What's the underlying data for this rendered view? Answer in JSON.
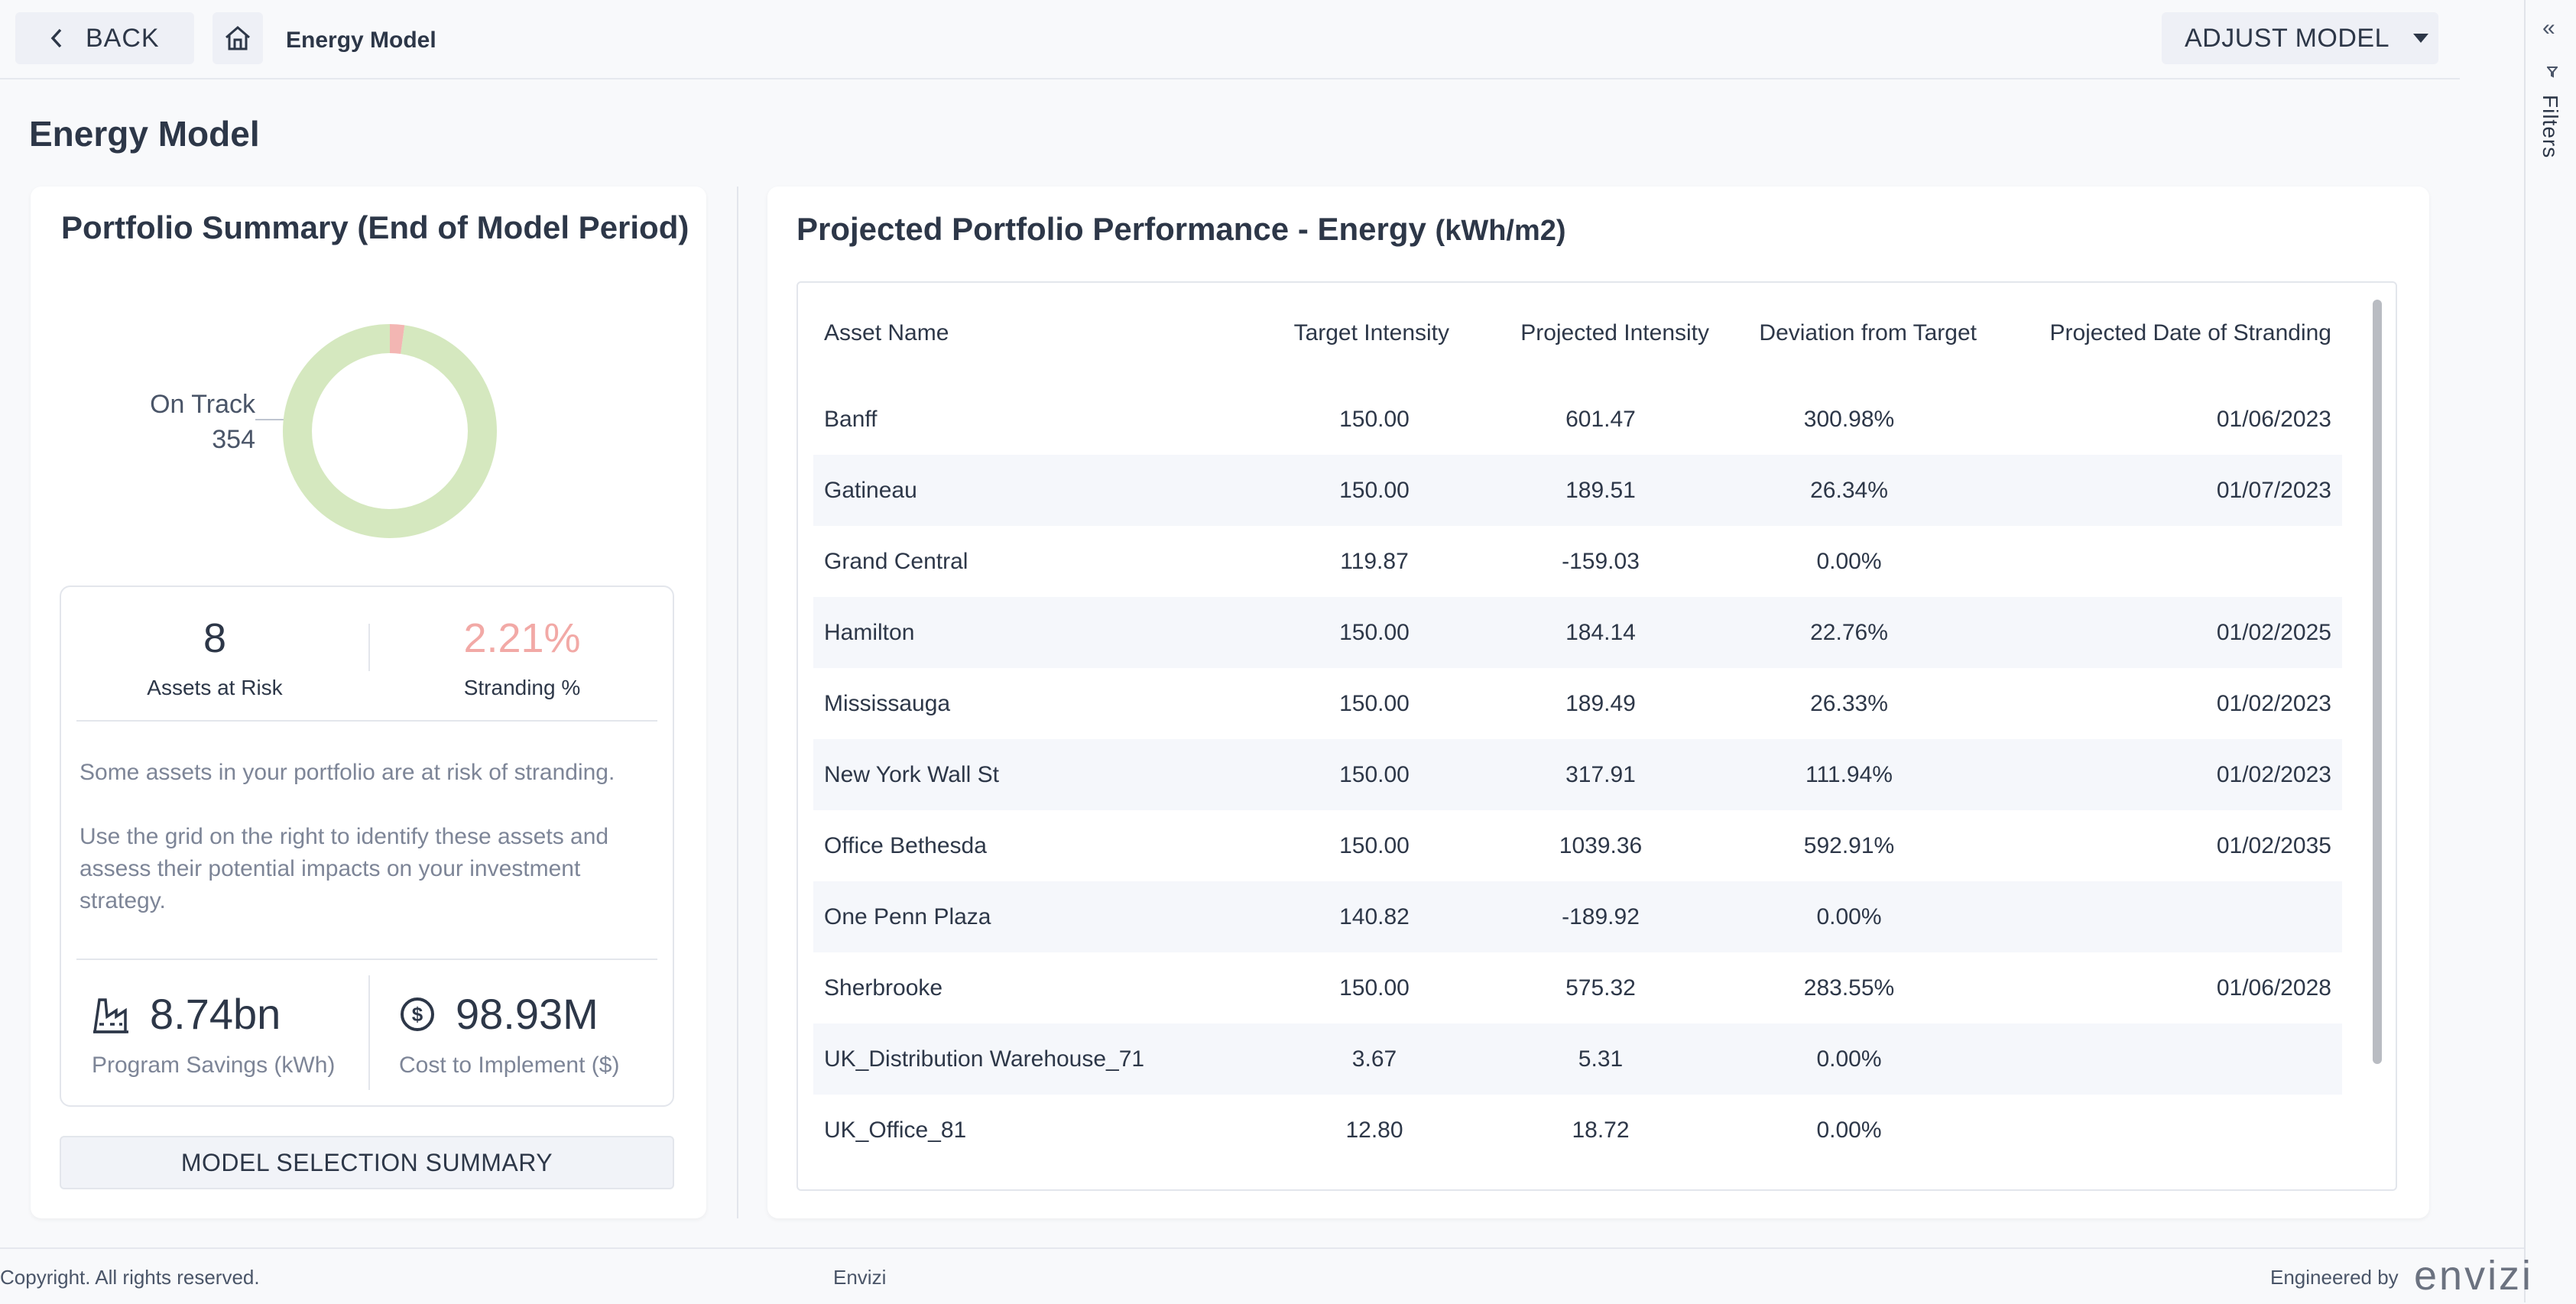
{
  "topbar": {
    "back_label": "BACK",
    "breadcrumb": "Energy Model",
    "adjust_label": "ADJUST MODEL"
  },
  "rail": {
    "filters_label": "Filters"
  },
  "page": {
    "title": "Energy Model"
  },
  "summary": {
    "title": "Portfolio Summary (End of Model Period)",
    "donut": {
      "label": "On Track",
      "count": "354",
      "on_track": 354,
      "at_risk": 8,
      "on_track_color": "#d5e8bf",
      "at_risk_color": "#f3b6b3"
    },
    "assets_at_risk": "8",
    "assets_at_risk_label": "Assets at Risk",
    "stranding_pct": "2.21%",
    "stranding_label": "Stranding %",
    "note_1": "Some assets in your portfolio are at risk of stranding.",
    "note_2": "Use the grid on the right to identify these assets and assess their potential impacts on your investment strategy.",
    "savings_value": "8.74bn",
    "savings_label": "Program Savings (kWh)",
    "cost_value": "98.93M",
    "cost_label": "Cost to Implement ($)",
    "model_button": "MODEL SELECTION SUMMARY"
  },
  "performance": {
    "title": "Projected Portfolio Performance - Energy",
    "unit": "(kWh/m2)",
    "columns": [
      "Asset Name",
      "Target Intensity",
      "Projected Intensity",
      "Deviation from Target",
      "Projected Date of Stranding"
    ],
    "rows": [
      {
        "name": "Banff",
        "target": "150.00",
        "projected": "601.47",
        "deviation": "300.98%",
        "date": "01/06/2023"
      },
      {
        "name": "Gatineau",
        "target": "150.00",
        "projected": "189.51",
        "deviation": "26.34%",
        "date": "01/07/2023"
      },
      {
        "name": "Grand Central",
        "target": "119.87",
        "projected": "-159.03",
        "deviation": "0.00%",
        "date": ""
      },
      {
        "name": "Hamilton",
        "target": "150.00",
        "projected": "184.14",
        "deviation": "22.76%",
        "date": "01/02/2025"
      },
      {
        "name": "Mississauga",
        "target": "150.00",
        "projected": "189.49",
        "deviation": "26.33%",
        "date": "01/02/2023"
      },
      {
        "name": "New York Wall St",
        "target": "150.00",
        "projected": "317.91",
        "deviation": "111.94%",
        "date": "01/02/2023"
      },
      {
        "name": "Office Bethesda",
        "target": "150.00",
        "projected": "1039.36",
        "deviation": "592.91%",
        "date": "01/02/2035"
      },
      {
        "name": "One Penn Plaza",
        "target": "140.82",
        "projected": "-189.92",
        "deviation": "0.00%",
        "date": ""
      },
      {
        "name": "Sherbrooke",
        "target": "150.00",
        "projected": "575.32",
        "deviation": "283.55%",
        "date": "01/06/2028"
      },
      {
        "name": "UK_Distribution Warehouse_71",
        "target": "3.67",
        "projected": "5.31",
        "deviation": "0.00%",
        "date": ""
      },
      {
        "name": "UK_Office_81",
        "target": "12.80",
        "projected": "18.72",
        "deviation": "0.00%",
        "date": ""
      }
    ]
  },
  "footer": {
    "copyright": "Copyright. All rights reserved.",
    "brand": "Envizi",
    "engineered_by": "Engineered by",
    "logo": "envizi"
  }
}
